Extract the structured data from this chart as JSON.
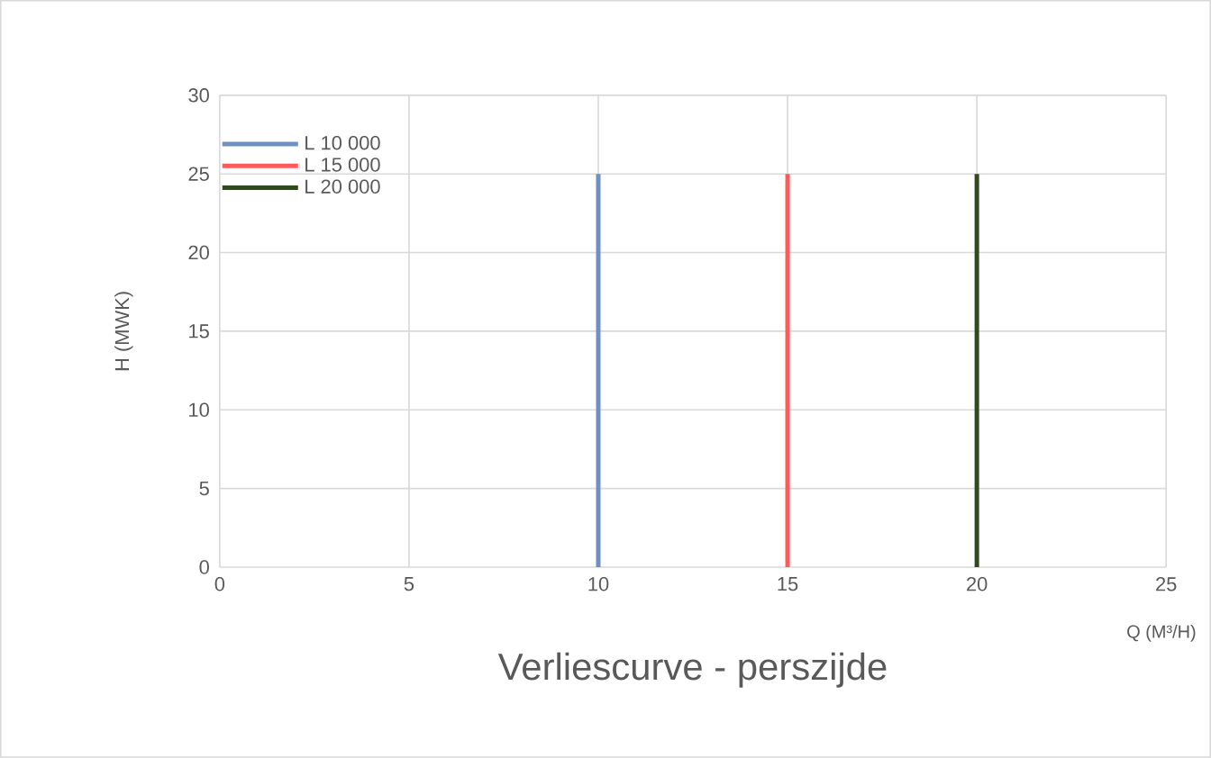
{
  "chart_data": {
    "type": "line",
    "title": "Verliescurve - perszijde",
    "xlabel": "Q (M³/H)",
    "ylabel": "H (MWK)",
    "xlim": [
      0,
      25
    ],
    "xticks": [
      0,
      5,
      10,
      15,
      20,
      25
    ],
    "ylim": [
      0,
      30
    ],
    "yticks": [
      0,
      5,
      10,
      15,
      20,
      25,
      30
    ],
    "grid": true,
    "legend": "top left",
    "series": [
      {
        "name": "L 10 000",
        "color": "#7090c4",
        "x": [
          10,
          10
        ],
        "values": [
          0,
          25
        ]
      },
      {
        "name": "L 15 000",
        "color": "#ff5b5b",
        "x": [
          15,
          15
        ],
        "values": [
          0,
          25
        ]
      },
      {
        "name": "L 20 000",
        "color": "#2f4a1f",
        "x": [
          20,
          20
        ],
        "values": [
          0,
          25
        ]
      }
    ]
  }
}
